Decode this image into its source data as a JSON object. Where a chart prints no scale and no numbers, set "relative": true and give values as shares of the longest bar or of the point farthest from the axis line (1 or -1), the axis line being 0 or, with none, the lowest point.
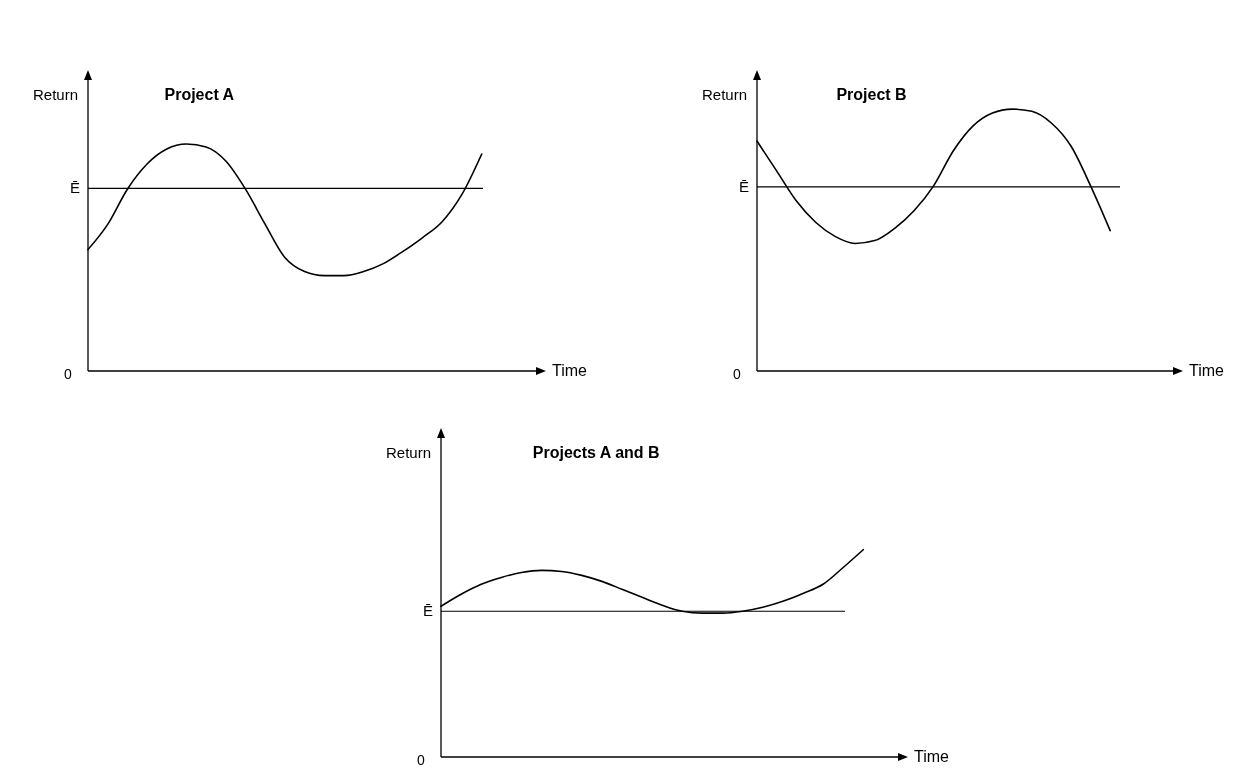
{
  "chart_data": [
    {
      "type": "line",
      "title": "Project A",
      "xlabel": "Time",
      "ylabel": "Return",
      "relative": true,
      "categories": [
        null,
        null,
        null,
        null,
        null,
        null,
        null,
        null,
        null,
        null,
        null,
        null,
        null,
        null,
        null,
        null,
        null,
        null,
        null,
        null,
        null
      ],
      "series": [
        {
          "color": "#000000",
          "values": [
            0.535,
            0.646,
            0.801,
            0.912,
            0.978,
            1,
            0.987,
            0.925,
            0.801,
            0.646,
            0.5,
            0.438,
            0.42,
            0.42,
            0.438,
            0.473,
            0.527,
            0.588,
            0.659,
            0.779,
            0.956
          ]
        }
      ],
      "ref_lines": [
        {
          "axis": "y",
          "value": 0.805,
          "label": "Ē"
        }
      ],
      "annotations": [
        "0"
      ]
    },
    {
      "type": "line",
      "title": "Project B",
      "xlabel": "Time",
      "ylabel": "Return",
      "relative": true,
      "categories": [
        null,
        null,
        null,
        null,
        null,
        null,
        null,
        null,
        null,
        null,
        null,
        null,
        null,
        null,
        null,
        null,
        null,
        null,
        null
      ],
      "series": [
        {
          "color": "#000000",
          "values": [
            0.878,
            0.764,
            0.65,
            0.567,
            0.513,
            0.487,
            0.498,
            0.544,
            0.612,
            0.707,
            0.84,
            0.935,
            0.985,
            1,
            0.992,
            0.947,
            0.859,
            0.707,
            0.536
          ]
        }
      ],
      "ref_lines": [
        {
          "axis": "y",
          "value": 0.703,
          "label": "Ē"
        }
      ],
      "annotations": [
        "0"
      ]
    },
    {
      "type": "line",
      "title": "Projects A and B",
      "xlabel": "Time",
      "ylabel": "Return",
      "relative": true,
      "categories": [
        null,
        null,
        null,
        null,
        null,
        null,
        null,
        null,
        null,
        null,
        null,
        null,
        null,
        null,
        null,
        null,
        null,
        null,
        null,
        null,
        null,
        null
      ],
      "series": [
        {
          "color": "#000000",
          "values": [
            0.727,
            0.785,
            0.833,
            0.866,
            0.89,
            0.9,
            0.895,
            0.876,
            0.847,
            0.809,
            0.77,
            0.732,
            0.703,
            0.694,
            0.694,
            0.703,
            0.722,
            0.751,
            0.789,
            0.833,
            0.914,
            1
          ]
        }
      ],
      "ref_lines": [
        {
          "axis": "y",
          "value": 0.703,
          "label": "Ē"
        }
      ],
      "annotations": [
        "0"
      ]
    }
  ]
}
